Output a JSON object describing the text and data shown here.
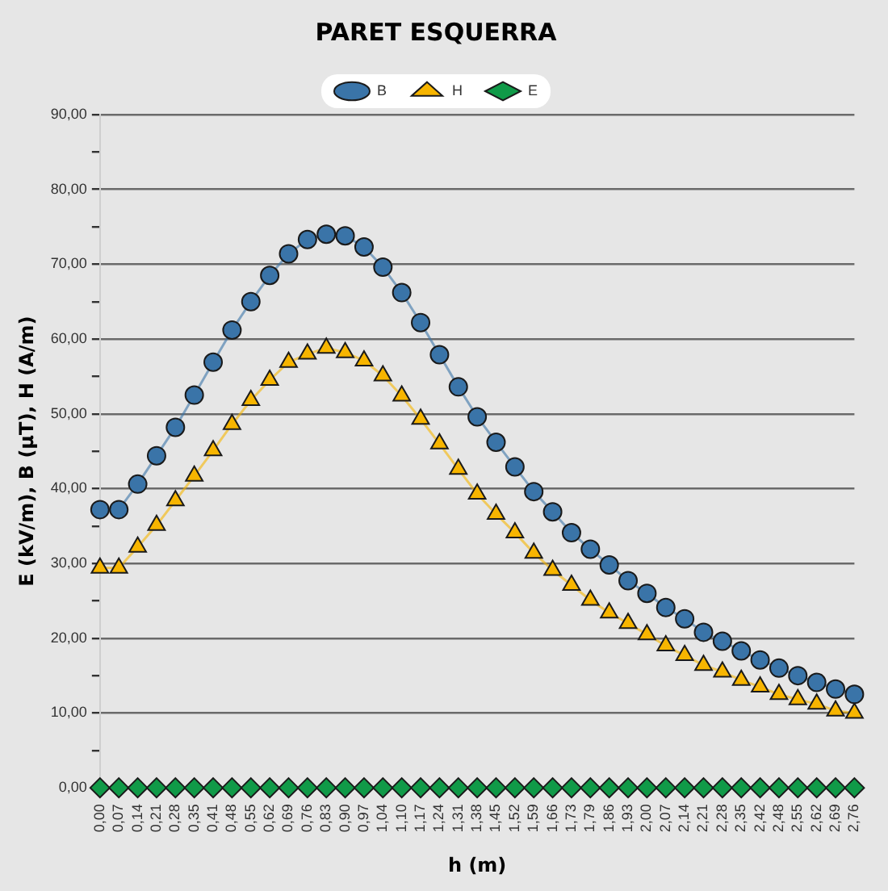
{
  "chart_data": {
    "type": "line",
    "title": "PARET ESQUERRA",
    "xlabel": "h (m)",
    "ylabel": "E (kV/m), B (µT), H (A/m)",
    "categories": [
      "0,00",
      "0,07",
      "0,14",
      "0,21",
      "0,28",
      "0,35",
      "0,41",
      "0,48",
      "0,55",
      "0,62",
      "0,69",
      "0,76",
      "0,83",
      "0,90",
      "0,97",
      "1,04",
      "1,10",
      "1,17",
      "1,24",
      "1,31",
      "1,38",
      "1,45",
      "1,52",
      "1,59",
      "1,66",
      "1,73",
      "1,79",
      "1,86",
      "1,93",
      "2,00",
      "2,07",
      "2,14",
      "2,21",
      "2,28",
      "2,35",
      "2,42",
      "2,48",
      "2,55",
      "2,62",
      "2,69",
      "2,76"
    ],
    "ylim": [
      0,
      90
    ],
    "yticks": [
      {
        "value": 0,
        "label": "0,00"
      },
      {
        "value": 5,
        "label": null
      },
      {
        "value": 10,
        "label": "10,00"
      },
      {
        "value": 15,
        "label": null
      },
      {
        "value": 20,
        "label": "20,00"
      },
      {
        "value": 25,
        "label": null
      },
      {
        "value": 30,
        "label": "30,00"
      },
      {
        "value": 35,
        "label": null
      },
      {
        "value": 40,
        "label": "40,00"
      },
      {
        "value": 45,
        "label": null
      },
      {
        "value": 50,
        "label": "50,00"
      },
      {
        "value": 55,
        "label": null
      },
      {
        "value": 60,
        "label": "60,00"
      },
      {
        "value": 65,
        "label": null
      },
      {
        "value": 70,
        "label": "70,00"
      },
      {
        "value": 75,
        "label": null
      },
      {
        "value": 80,
        "label": "80,00"
      },
      {
        "value": 85,
        "label": null
      },
      {
        "value": 90,
        "label": "90,00"
      }
    ],
    "grid": "y",
    "legend": "top",
    "series": [
      {
        "name": "B",
        "color": "#3a74a8",
        "marker": "circle",
        "values": [
          37.2,
          37.2,
          40.6,
          44.4,
          48.2,
          52.5,
          56.9,
          61.2,
          65.0,
          68.5,
          71.4,
          73.3,
          74.0,
          73.8,
          72.3,
          69.6,
          66.2,
          62.2,
          57.9,
          53.6,
          49.6,
          46.2,
          42.9,
          39.6,
          36.9,
          34.1,
          31.9,
          29.8,
          27.7,
          26.0,
          24.1,
          22.6,
          20.8,
          19.6,
          18.3,
          17.1,
          16.0,
          15.0,
          14.1,
          13.2,
          12.5
        ]
      },
      {
        "name": "H",
        "color": "#f7b500",
        "marker": "triangle",
        "values": [
          29.4,
          29.4,
          32.2,
          35.1,
          38.4,
          41.7,
          45.1,
          48.6,
          51.8,
          54.5,
          56.9,
          58.0,
          58.8,
          58.2,
          57.1,
          55.1,
          52.4,
          49.3,
          46.0,
          42.6,
          39.3,
          36.6,
          34.1,
          31.4,
          29.1,
          27.1,
          25.1,
          23.4,
          22.0,
          20.5,
          19.0,
          17.7,
          16.4,
          15.5,
          14.4,
          13.5,
          12.5,
          11.8,
          11.2,
          10.3,
          10.0
        ]
      },
      {
        "name": "E",
        "color": "#109a48",
        "marker": "diamond",
        "values": [
          0,
          0,
          0,
          0,
          0,
          0,
          0,
          0,
          0,
          0,
          0,
          0,
          0,
          0,
          0,
          0,
          0,
          0,
          0,
          0,
          0,
          0,
          0,
          0,
          0,
          0,
          0,
          0,
          0,
          0,
          0,
          0,
          0,
          0,
          0,
          0,
          0,
          0,
          0,
          0,
          0
        ]
      }
    ]
  }
}
